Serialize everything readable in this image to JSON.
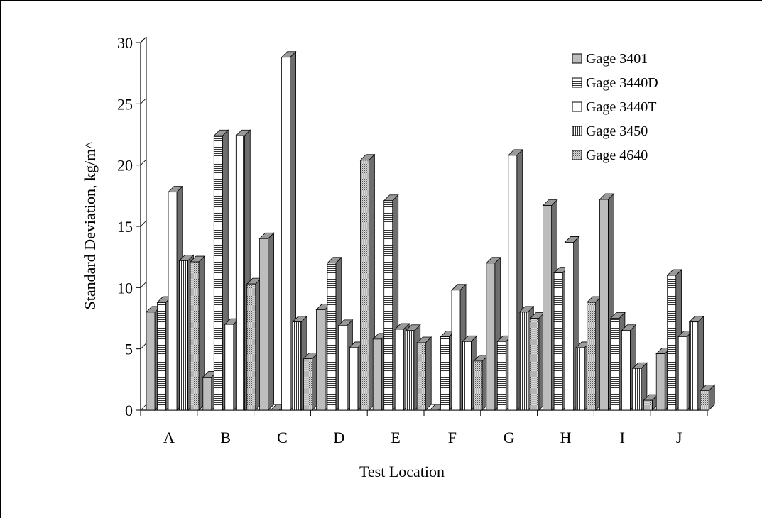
{
  "chart_data": {
    "type": "bar",
    "title": "",
    "xlabel": "Test Location",
    "ylabel": "Standard Deviation, kg/m^",
    "categories": [
      "A",
      "B",
      "C",
      "D",
      "E",
      "F",
      "G",
      "H",
      "I",
      "J"
    ],
    "ylim": [
      0,
      30
    ],
    "yticks": [
      "0",
      "5",
      "10",
      "15",
      "20",
      "25",
      "30"
    ],
    "grid": false,
    "legend_position": "top-right",
    "series": [
      {
        "name": "Gage 3401",
        "values": [
          8.0,
          2.7,
          14.0,
          8.2,
          5.8,
          0.0,
          12.0,
          16.7,
          17.2,
          4.6
        ],
        "fill": "#bdbdbd",
        "pattern": "solid"
      },
      {
        "name": "Gage 3440D",
        "values": [
          8.8,
          22.4,
          0.0,
          12.0,
          17.1,
          6.0,
          5.6,
          11.2,
          7.5,
          11.0
        ],
        "fill": "#ffffff",
        "pattern": "horizontal"
      },
      {
        "name": "Gage 3440T",
        "values": [
          17.8,
          7.0,
          28.8,
          6.9,
          6.6,
          9.8,
          20.8,
          13.7,
          6.5,
          6.0
        ],
        "fill": "#ffffff",
        "pattern": "none"
      },
      {
        "name": "Gage 3450",
        "values": [
          12.2,
          22.4,
          7.2,
          5.1,
          6.5,
          5.6,
          8.0,
          5.1,
          3.4,
          7.2
        ],
        "fill": "#ffffff",
        "pattern": "vertical"
      },
      {
        "name": "Gage 4640",
        "values": [
          12.1,
          10.3,
          4.2,
          20.4,
          5.5,
          4.0,
          7.5,
          8.8,
          0.8,
          1.6
        ],
        "fill": "#c8c8c8",
        "pattern": "stipple"
      }
    ]
  }
}
